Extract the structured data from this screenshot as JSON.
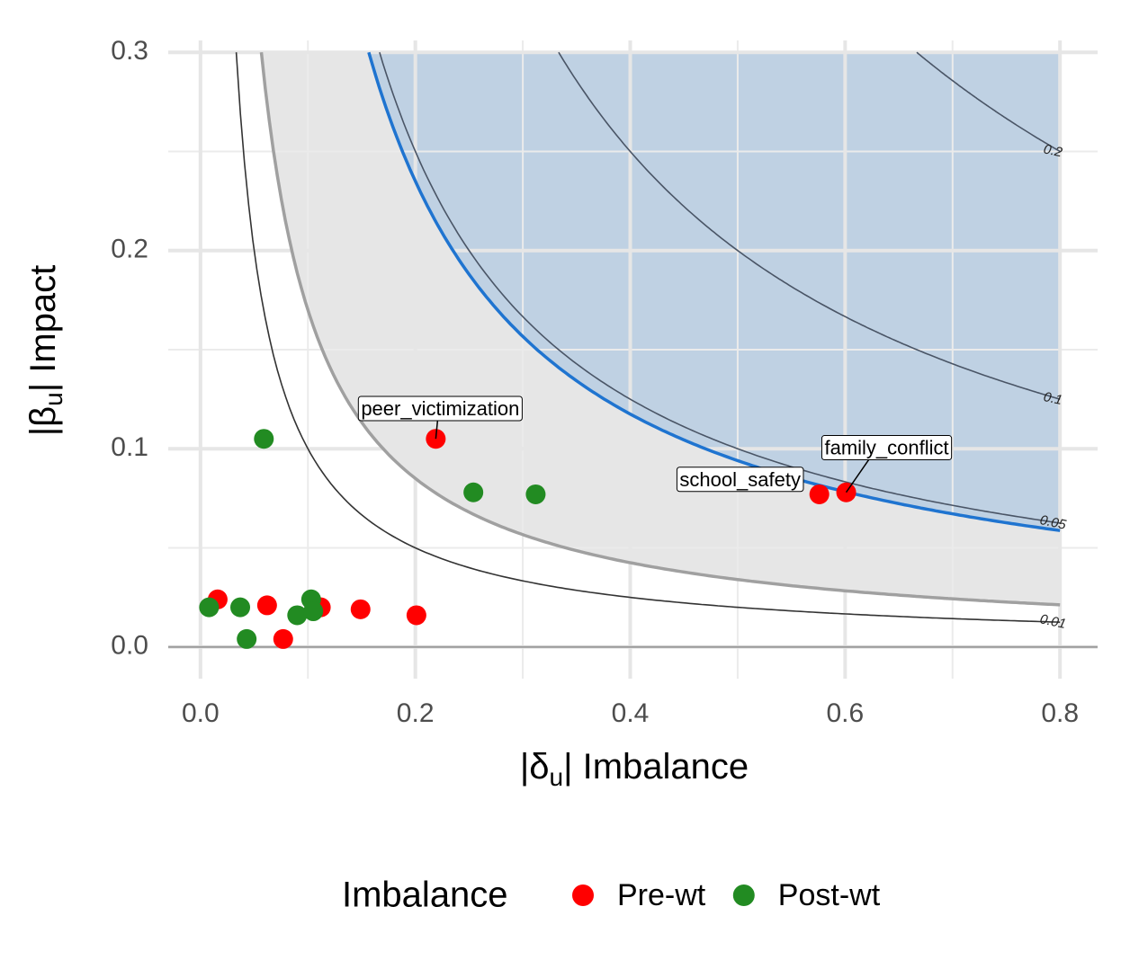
{
  "chart_data": {
    "type": "scatter",
    "x_label": [
      "|δ",
      "u",
      "| Imbalance"
    ],
    "y_label": [
      "|β",
      "u",
      "| Impact"
    ],
    "legend_title": "Imbalance",
    "legend_position": "bottom",
    "xlim": [
      -0.03,
      0.835
    ],
    "ylim": [
      -0.016,
      0.306
    ],
    "xticks": [
      {
        "value": 0,
        "label": "0.0"
      },
      0.2,
      0.4,
      0.6,
      0.8
    ],
    "yticks": [
      {
        "value": 0,
        "label": "0.0"
      },
      0.1,
      0.2,
      0.3
    ],
    "xminor": [
      0.1,
      0.3,
      0.5,
      0.7
    ],
    "yminor": [
      0.05,
      0.15,
      0.25
    ],
    "grid": true,
    "hline": 0,
    "x_extent": 0.8,
    "shaded_regions": [
      {
        "k": 0.017,
        "fill": "#e6e6e6",
        "line": "#a0a0a0"
      },
      {
        "k": 0.047,
        "fill": "#bfd1e3",
        "line": "#1f74d0"
      }
    ],
    "contours": [
      0.01,
      0.05,
      0.1,
      0.2
    ],
    "series": [
      {
        "name": "Pre-wt",
        "color": "#ff0000",
        "x": [
          0.016,
          0.062,
          0.077,
          0.112,
          0.149,
          0.201,
          0.219,
          0.576,
          0.601
        ],
        "values": [
          0.024,
          0.021,
          0.004,
          0.02,
          0.019,
          0.016,
          0.105,
          0.077,
          0.078
        ],
        "labels": [
          null,
          null,
          null,
          null,
          null,
          null,
          "peer_victimization",
          "school_safety",
          "family_conflict"
        ]
      },
      {
        "name": "Post-wt",
        "color": "#228b22",
        "x": [
          0.008,
          0.037,
          0.043,
          0.059,
          0.09,
          0.103,
          0.105,
          0.254,
          0.312
        ],
        "values": [
          0.02,
          0.02,
          0.004,
          0.105,
          0.016,
          0.024,
          0.018,
          0.078,
          0.077
        ]
      }
    ]
  }
}
